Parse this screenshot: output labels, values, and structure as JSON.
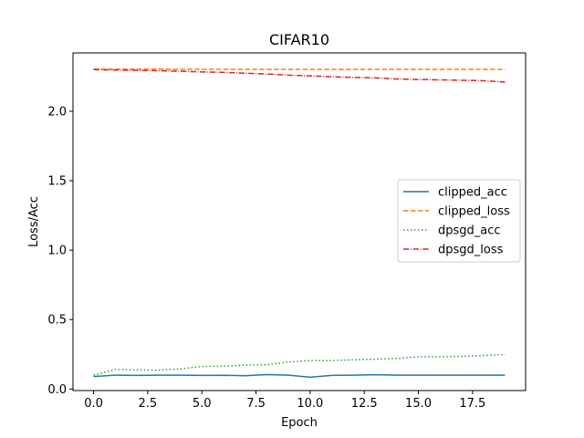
{
  "chart_data": {
    "type": "line",
    "title": "CIFAR10",
    "xlabel": "Epoch",
    "ylabel": "Loss/Acc",
    "xlim": [
      -0.95,
      19.95
    ],
    "ylim": [
      -0.011,
      2.42
    ],
    "x_ticks": [
      0.0,
      2.5,
      5.0,
      7.5,
      10.0,
      12.5,
      15.0,
      17.5
    ],
    "x_tick_labels": [
      "0.0",
      "2.5",
      "5.0",
      "7.5",
      "10.0",
      "12.5",
      "15.0",
      "17.5"
    ],
    "y_ticks": [
      0.0,
      0.5,
      1.0,
      1.5,
      2.0
    ],
    "y_tick_labels": [
      "0.0",
      "0.5",
      "1.0",
      "1.5",
      "2.0"
    ],
    "grid": false,
    "legend_position": "center-right",
    "x": [
      0,
      1,
      2,
      3,
      4,
      5,
      6,
      7,
      8,
      9,
      10,
      11,
      12,
      13,
      14,
      15,
      16,
      17,
      18,
      19
    ],
    "series": [
      {
        "name": "clipped_acc",
        "color": "#1f77b4",
        "dash": "solid",
        "values": [
          0.09,
          0.1,
          0.098,
          0.1,
          0.1,
          0.098,
          0.099,
          0.096,
          0.104,
          0.1,
          0.085,
          0.098,
          0.1,
          0.103,
          0.1,
          0.1,
          0.1,
          0.1,
          0.1,
          0.1
        ]
      },
      {
        "name": "clipped_loss",
        "color": "#ff7f0e",
        "dash": "dashed",
        "values": [
          2.303,
          2.303,
          2.303,
          2.303,
          2.302,
          2.302,
          2.302,
          2.302,
          2.302,
          2.302,
          2.302,
          2.302,
          2.302,
          2.302,
          2.302,
          2.302,
          2.302,
          2.302,
          2.302,
          2.301
        ]
      },
      {
        "name": "dpsgd_acc",
        "color": "#2ca02c",
        "dash": "dotted",
        "values": [
          0.1,
          0.14,
          0.138,
          0.135,
          0.145,
          0.162,
          0.165,
          0.172,
          0.175,
          0.195,
          0.205,
          0.205,
          0.21,
          0.215,
          0.22,
          0.232,
          0.232,
          0.235,
          0.242,
          0.248
        ]
      },
      {
        "name": "dpsgd_loss",
        "color": "#d62728",
        "dash": "dashdot",
        "values": [
          2.3,
          2.297,
          2.294,
          2.292,
          2.288,
          2.283,
          2.28,
          2.274,
          2.268,
          2.26,
          2.255,
          2.248,
          2.244,
          2.24,
          2.232,
          2.229,
          2.226,
          2.223,
          2.22,
          2.21
        ]
      }
    ]
  }
}
